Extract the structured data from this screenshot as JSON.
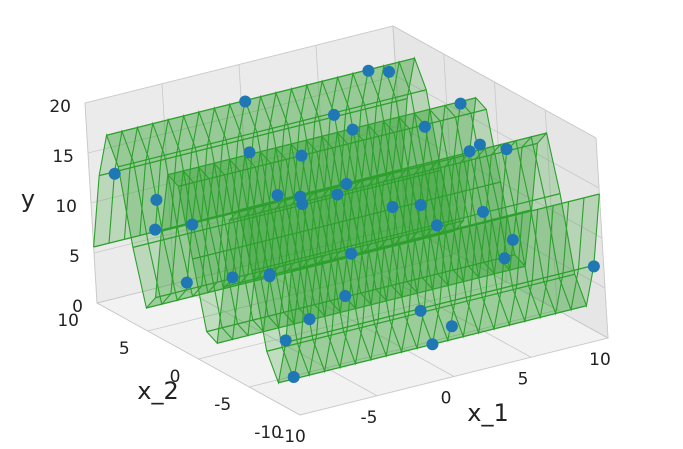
{
  "chart_data": {
    "type": "surface3d",
    "xlabel": "x_1",
    "ylabel": "x_2",
    "zlabel": "y",
    "xlim": [
      -10,
      10
    ],
    "ylim": [
      -10,
      10
    ],
    "zlim": [
      0,
      20
    ],
    "xticks": [
      -10,
      -5,
      0,
      5,
      10
    ],
    "yticks": [
      -10,
      -5,
      0,
      5,
      10
    ],
    "zticks": [
      0,
      5,
      10,
      15,
      20
    ],
    "surface": {
      "color": "#2ca02c",
      "x1": [
        -10,
        -9,
        -8,
        -7,
        -6,
        -5,
        -4,
        -3,
        -2,
        -1,
        0,
        1,
        2,
        3,
        4,
        5,
        6,
        7,
        8,
        9,
        10
      ],
      "x2": [
        -10,
        -9,
        -8,
        -7,
        -6,
        -5,
        -4,
        -3,
        -2,
        -1,
        0,
        1,
        2,
        3,
        4,
        5,
        6,
        7,
        8,
        9,
        10
      ],
      "z": [
        14.4,
        6.7,
        2.1,
        4.7,
        12.2,
        17.7,
        16.1,
        8.9,
        2.7,
        3.3,
        10,
        16.7,
        17.3,
        11.1,
        3.9,
        2.3,
        7.8,
        15.3,
        17.9,
        13.3,
        5.6
      ]
    },
    "series": [
      {
        "name": "samples",
        "color": "#1f77b4",
        "x1": [
          -9,
          -6,
          -3,
          0,
          2,
          5,
          8,
          -7,
          -4,
          -1,
          3,
          6,
          9,
          -8,
          -5,
          -2,
          1,
          4,
          7,
          -9,
          -6,
          10,
          -10,
          0,
          4,
          -3,
          6,
          -5,
          2,
          8,
          -1,
          5,
          -7,
          9,
          3,
          -4,
          7,
          1,
          -8,
          -2
        ],
        "x2": [
          -8,
          -5,
          -4,
          -7,
          -6,
          -5,
          -4,
          -3,
          -2,
          -1,
          0,
          1,
          2,
          3,
          4,
          5,
          6,
          7,
          8,
          9,
          10,
          -9,
          -9,
          -8,
          -9.5,
          -5,
          -4.5,
          1.5,
          2,
          7.5,
          8,
          -6,
          5.5,
          -2.5,
          4.5,
          0.5,
          3.5,
          -8.5,
          6.5,
          1
        ],
        "values": [
          2.3,
          17.5,
          16.0,
          4.9,
          12.1,
          17.8,
          16.3,
          9.0,
          2.8,
          3.4,
          10.2,
          16.5,
          17.1,
          11.0,
          4.0,
          2.4,
          7.9,
          15.1,
          17.8,
          13.1,
          5.8,
          6.6,
          6.9,
          2.1,
          10.0,
          17.6,
          17.8,
          17.9,
          17.2,
          17.6,
          17.8,
          12.3,
          3.4,
          6.0,
          3.0,
          13.8,
          6.9,
          3.8,
          11.5,
          16.7
        ]
      }
    ]
  }
}
